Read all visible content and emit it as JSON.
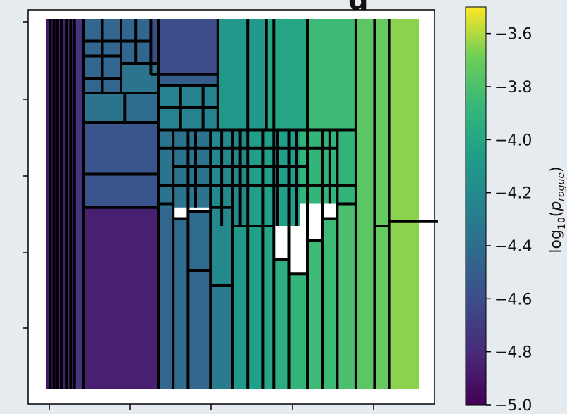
{
  "chart_data": {
    "type": "heatmap",
    "title_visible_fragment": "g",
    "description_note": "",
    "colormap": "viridis",
    "colorbar": {
      "label_base": "log",
      "label_sub": "10",
      "label_var": "p",
      "label_var_sub": "rogue",
      "min": -5.0,
      "max": -3.5,
      "ticks": [
        -3.6,
        -3.8,
        -4.0,
        -4.2,
        -4.4,
        -4.6,
        -4.8,
        -5.0
      ],
      "tick_labels": [
        "−3.6",
        "−3.8",
        "−4.0",
        "−4.2",
        "−4.4",
        "−4.6",
        "−4.8",
        "−5.0"
      ]
    },
    "axes": {
      "x_tick_count": 5,
      "y_tick_count": 5,
      "x_tick_labels": [],
      "y_tick_labels": [],
      "grid": false
    },
    "cells": [
      {
        "x0": 0.0,
        "x1": 0.03,
        "y0": 0.0,
        "y1": 1.0,
        "value": -4.9
      },
      {
        "x0": 0.03,
        "x1": 0.055,
        "y0": 0.0,
        "y1": 1.0,
        "value": -4.85
      },
      {
        "x0": 0.055,
        "x1": 0.075,
        "y0": 0.0,
        "y1": 1.0,
        "value": -4.8
      },
      {
        "x0": 0.075,
        "x1": 0.1,
        "y0": 0.0,
        "y1": 1.0,
        "value": -4.75
      },
      {
        "x0": 0.1,
        "x1": 0.3,
        "y0": 0.51,
        "y1": 1.0,
        "value": -4.85
      },
      {
        "x0": 0.1,
        "x1": 0.3,
        "y0": 0.42,
        "y1": 0.51,
        "value": -4.55
      },
      {
        "x0": 0.1,
        "x1": 0.3,
        "y0": 0.28,
        "y1": 0.42,
        "value": -4.55
      },
      {
        "x0": 0.1,
        "x1": 0.21,
        "y0": 0.2,
        "y1": 0.28,
        "value": -4.35
      },
      {
        "x0": 0.21,
        "x1": 0.3,
        "y0": 0.2,
        "y1": 0.28,
        "value": -4.4
      },
      {
        "x0": 0.3,
        "x1": 0.34,
        "y0": 0.5,
        "y1": 1.0,
        "value": -4.45
      },
      {
        "x0": 0.34,
        "x1": 0.38,
        "y0": 0.54,
        "y1": 1.0,
        "value": -4.4
      },
      {
        "x0": 0.38,
        "x1": 0.44,
        "y0": 0.68,
        "y1": 1.0,
        "value": -4.45
      },
      {
        "x0": 0.38,
        "x1": 0.44,
        "y0": 0.52,
        "y1": 0.68,
        "value": -4.4
      },
      {
        "x0": 0.44,
        "x1": 0.5,
        "y0": 0.72,
        "y1": 1.0,
        "value": -4.3
      },
      {
        "x0": 0.44,
        "x1": 0.5,
        "y0": 0.51,
        "y1": 0.72,
        "value": -4.2
      },
      {
        "x0": 0.5,
        "x1": 0.54,
        "y0": 0.56,
        "y1": 1.0,
        "value": -4.1
      },
      {
        "x0": 0.54,
        "x1": 0.58,
        "y0": 0.56,
        "y1": 1.0,
        "value": -4.05
      },
      {
        "x0": 0.58,
        "x1": 0.61,
        "y0": 0.56,
        "y1": 1.0,
        "value": -4.0
      },
      {
        "x0": 0.61,
        "x1": 0.65,
        "y0": 0.65,
        "y1": 1.0,
        "value": -3.95
      },
      {
        "x0": 0.65,
        "x1": 0.7,
        "y0": 0.69,
        "y1": 1.0,
        "value": -3.9
      },
      {
        "x0": 0.7,
        "x1": 0.74,
        "y0": 0.6,
        "y1": 1.0,
        "value": -3.85
      },
      {
        "x0": 0.74,
        "x1": 0.78,
        "y0": 0.54,
        "y1": 1.0,
        "value": -3.85
      },
      {
        "x0": 0.78,
        "x1": 0.83,
        "y0": 0.5,
        "y1": 1.0,
        "value": -3.8
      },
      {
        "x0": 0.83,
        "x1": 0.88,
        "y0": 0.0,
        "y1": 1.0,
        "value": -3.75
      },
      {
        "x0": 0.88,
        "x1": 0.92,
        "y0": 0.0,
        "y1": 1.0,
        "value": -3.72
      },
      {
        "x0": 0.92,
        "x1": 1.0,
        "y0": 0.0,
        "y1": 1.0,
        "value": -3.65
      },
      {
        "x0": 0.3,
        "x1": 0.44,
        "y0": 0.3,
        "y1": 0.51,
        "value": -4.35
      },
      {
        "x0": 0.44,
        "x1": 0.54,
        "y0": 0.3,
        "y1": 0.56,
        "value": -4.2
      },
      {
        "x0": 0.54,
        "x1": 0.68,
        "y0": 0.3,
        "y1": 0.56,
        "value": -4.05
      },
      {
        "x0": 0.68,
        "x1": 0.83,
        "y0": 0.3,
        "y1": 0.5,
        "value": -3.9
      },
      {
        "x0": 0.3,
        "x1": 0.46,
        "y0": 0.18,
        "y1": 0.3,
        "value": -4.25
      },
      {
        "x0": 0.46,
        "x1": 0.59,
        "y0": 0.0,
        "y1": 0.3,
        "value": -4.1
      },
      {
        "x0": 0.59,
        "x1": 0.7,
        "y0": 0.0,
        "y1": 0.3,
        "value": -4.0
      },
      {
        "x0": 0.7,
        "x1": 0.83,
        "y0": 0.0,
        "y1": 0.3,
        "value": -3.85
      },
      {
        "x0": 0.1,
        "x1": 0.2,
        "y0": 0.0,
        "y1": 0.2,
        "value": -4.45
      },
      {
        "x0": 0.2,
        "x1": 0.28,
        "y0": 0.0,
        "y1": 0.12,
        "value": -4.45
      },
      {
        "x0": 0.28,
        "x1": 0.46,
        "y0": 0.0,
        "y1": 0.15,
        "value": -4.6
      },
      {
        "x0": 0.2,
        "x1": 0.3,
        "y0": 0.12,
        "y1": 0.2,
        "value": -4.35
      },
      {
        "x0": 0.3,
        "x1": 0.46,
        "y0": 0.15,
        "y1": 0.18,
        "value": -4.5
      }
    ],
    "boundaries": {
      "vertical": [
        {
          "x": 0.01,
          "y0": 0.0,
          "y1": 1.0
        },
        {
          "x": 0.02,
          "y0": 0.0,
          "y1": 1.0
        },
        {
          "x": 0.03,
          "y0": 0.0,
          "y1": 1.0
        },
        {
          "x": 0.04,
          "y0": 0.0,
          "y1": 1.0
        },
        {
          "x": 0.055,
          "y0": 0.0,
          "y1": 1.0
        },
        {
          "x": 0.065,
          "y0": 0.0,
          "y1": 1.0
        },
        {
          "x": 0.075,
          "y0": 0.0,
          "y1": 1.0
        },
        {
          "x": 0.1,
          "y0": 0.0,
          "y1": 1.0
        },
        {
          "x": 0.3,
          "y0": 0.0,
          "y1": 1.0
        },
        {
          "x": 0.34,
          "y0": 0.3,
          "y1": 1.0
        },
        {
          "x": 0.38,
          "y0": 0.3,
          "y1": 1.0
        },
        {
          "x": 0.44,
          "y0": 0.3,
          "y1": 1.0
        },
        {
          "x": 0.5,
          "y0": 0.3,
          "y1": 1.0
        },
        {
          "x": 0.54,
          "y0": 0.0,
          "y1": 1.0
        },
        {
          "x": 0.58,
          "y0": 0.3,
          "y1": 1.0
        },
        {
          "x": 0.61,
          "y0": 0.0,
          "y1": 1.0
        },
        {
          "x": 0.65,
          "y0": 0.3,
          "y1": 1.0
        },
        {
          "x": 0.7,
          "y0": 0.0,
          "y1": 1.0
        },
        {
          "x": 0.74,
          "y0": 0.3,
          "y1": 1.0
        },
        {
          "x": 0.78,
          "y0": 0.3,
          "y1": 1.0
        },
        {
          "x": 0.83,
          "y0": 0.0,
          "y1": 1.0
        },
        {
          "x": 0.88,
          "y0": 0.0,
          "y1": 1.0
        },
        {
          "x": 0.92,
          "y0": 0.0,
          "y1": 1.0
        },
        {
          "x": 0.46,
          "y0": 0.0,
          "y1": 0.3
        },
        {
          "x": 0.59,
          "y0": 0.0,
          "y1": 0.3
        },
        {
          "x": 0.2,
          "y0": 0.0,
          "y1": 0.2
        },
        {
          "x": 0.28,
          "y0": 0.0,
          "y1": 0.15
        },
        {
          "x": 0.21,
          "y0": 0.2,
          "y1": 0.28
        },
        {
          "x": 0.4,
          "y0": 0.3,
          "y1": 0.51
        },
        {
          "x": 0.47,
          "y0": 0.3,
          "y1": 0.56
        },
        {
          "x": 0.52,
          "y0": 0.3,
          "y1": 0.56
        },
        {
          "x": 0.62,
          "y0": 0.3,
          "y1": 0.56
        },
        {
          "x": 0.67,
          "y0": 0.3,
          "y1": 0.56
        },
        {
          "x": 0.76,
          "y0": 0.3,
          "y1": 0.5
        },
        {
          "x": 0.36,
          "y0": 0.18,
          "y1": 0.3
        },
        {
          "x": 0.42,
          "y0": 0.18,
          "y1": 0.3
        },
        {
          "x": 0.15,
          "y0": 0.0,
          "y1": 0.2
        },
        {
          "x": 0.24,
          "y0": 0.0,
          "y1": 0.12
        }
      ],
      "horizontal": [
        {
          "y": 0.51,
          "x0": 0.1,
          "x1": 0.3
        },
        {
          "y": 0.42,
          "x0": 0.1,
          "x1": 0.3
        },
        {
          "y": 0.28,
          "x0": 0.1,
          "x1": 0.3
        },
        {
          "y": 0.2,
          "x0": 0.1,
          "x1": 0.3
        },
        {
          "y": 0.5,
          "x0": 0.3,
          "x1": 0.34
        },
        {
          "y": 0.54,
          "x0": 0.34,
          "x1": 0.38
        },
        {
          "y": 0.68,
          "x0": 0.38,
          "x1": 0.44
        },
        {
          "y": 0.52,
          "x0": 0.38,
          "x1": 0.44
        },
        {
          "y": 0.72,
          "x0": 0.44,
          "x1": 0.5
        },
        {
          "y": 0.51,
          "x0": 0.44,
          "x1": 0.5
        },
        {
          "y": 0.56,
          "x0": 0.5,
          "x1": 0.61
        },
        {
          "y": 0.65,
          "x0": 0.61,
          "x1": 0.65
        },
        {
          "y": 0.69,
          "x0": 0.65,
          "x1": 0.7
        },
        {
          "y": 0.6,
          "x0": 0.7,
          "x1": 0.74
        },
        {
          "y": 0.54,
          "x0": 0.74,
          "x1": 0.78
        },
        {
          "y": 0.5,
          "x0": 0.78,
          "x1": 0.83
        },
        {
          "y": 0.3,
          "x0": 0.3,
          "x1": 0.83
        },
        {
          "y": 0.45,
          "x0": 0.3,
          "x1": 0.83
        },
        {
          "y": 0.4,
          "x0": 0.34,
          "x1": 0.7
        },
        {
          "y": 0.35,
          "x0": 0.3,
          "x1": 0.78
        },
        {
          "y": 0.18,
          "x0": 0.3,
          "x1": 0.46
        },
        {
          "y": 0.15,
          "x0": 0.28,
          "x1": 0.46
        },
        {
          "y": 0.24,
          "x0": 0.3,
          "x1": 0.46
        },
        {
          "y": 0.12,
          "x0": 0.2,
          "x1": 0.3
        },
        {
          "y": 0.16,
          "x0": 0.1,
          "x1": 0.2
        },
        {
          "y": 0.1,
          "x0": 0.1,
          "x1": 0.2
        },
        {
          "y": 0.06,
          "x0": 0.1,
          "x1": 0.28
        },
        {
          "y": 0.56,
          "x0": 0.88,
          "x1": 0.92
        },
        {
          "y": 0.548,
          "x0": 0.92,
          "x1": 1.05
        }
      ]
    }
  }
}
